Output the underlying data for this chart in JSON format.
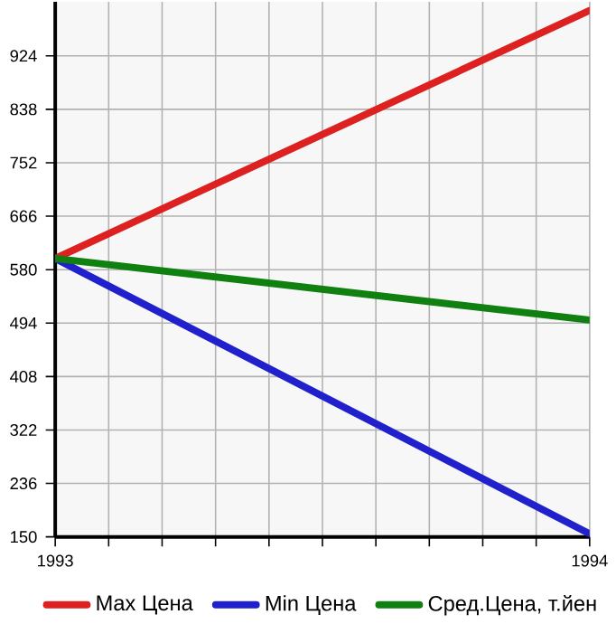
{
  "chart_data": {
    "type": "line",
    "x": [
      1993,
      1994
    ],
    "series": [
      {
        "name": "Max Цена",
        "color": "#dd2020",
        "values": [
          598,
          997
        ]
      },
      {
        "name": "Min Цена",
        "color": "#2020cc",
        "values": [
          598,
          155
        ]
      },
      {
        "name": "Сред.Цена, т.йен",
        "color": "#108010",
        "values": [
          598,
          499
        ]
      }
    ],
    "xlim": [
      1993,
      1994
    ],
    "xticks": [
      1993,
      {
        "value": 1993.1,
        "label": null
      },
      {
        "value": 1993.2,
        "label": null
      },
      {
        "value": 1993.3,
        "label": null
      },
      {
        "value": 1993.4,
        "label": null
      },
      {
        "value": 1993.5,
        "label": null
      },
      {
        "value": 1993.6,
        "label": null
      },
      {
        "value": 1993.7,
        "label": null
      },
      {
        "value": 1993.8,
        "label": null
      },
      {
        "value": 1993.9,
        "label": null
      },
      1994
    ],
    "ylim": [
      150,
      1011
    ],
    "yticks": [
      150,
      236,
      322,
      408,
      494,
      580,
      666,
      752,
      838,
      924
    ],
    "grid": true,
    "legend": "bottom",
    "marker": "none",
    "line_style": "solid"
  }
}
